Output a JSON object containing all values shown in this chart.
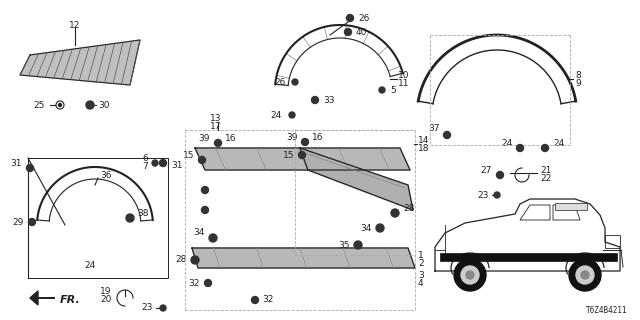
{
  "diagram_id": "T6Z4B4211",
  "background_color": "#ffffff",
  "line_color": "#222222",
  "gray_color": "#aaaaaa",
  "dashed_color": "#aaaaaa"
}
